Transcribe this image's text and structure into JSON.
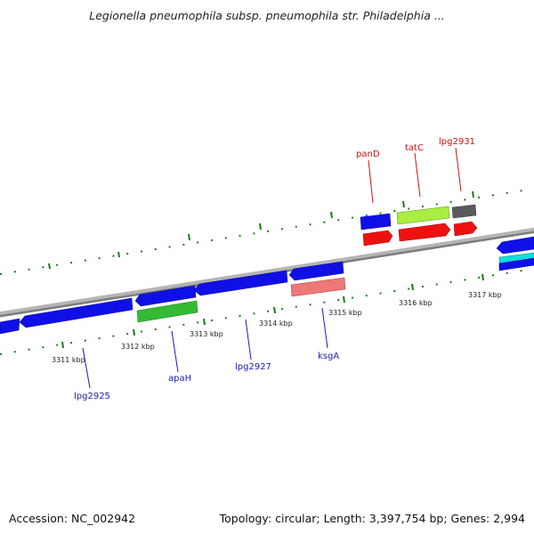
{
  "title": "Legionella pneumophila subsp. pneumophila str. Philadelphia ...",
  "footer": {
    "accession": "Accession: NC_002942",
    "summary": "Topology: circular; Length: 3,397,754 bp; Genes: 2,994"
  },
  "colors": {
    "backbone": "#8a8a8a",
    "tick": "#1a7a1a",
    "blue_gene": "#1010e6",
    "red_gene": "#ee1111",
    "green_gene": "#33bb33",
    "lime_gene": "#aaee44",
    "gray_gene": "#5a5a5a",
    "salmon_gene": "#ee7777",
    "cyan_gene": "#11dddd",
    "label_blue": "#1a1ab3",
    "label_red": "#cc1111"
  },
  "scale": {
    "labels": [
      "3311 kbp",
      "3312 kbp",
      "3313 kbp",
      "3314 kbp",
      "3315 kbp",
      "3316 kbp",
      "3317 kbp"
    ]
  },
  "gene_labels": {
    "forward": [
      "panD",
      "tatC",
      "lpg2931"
    ],
    "reverse": [
      "lpg2925",
      "apaH",
      "lpg2927",
      "ksgA"
    ]
  }
}
